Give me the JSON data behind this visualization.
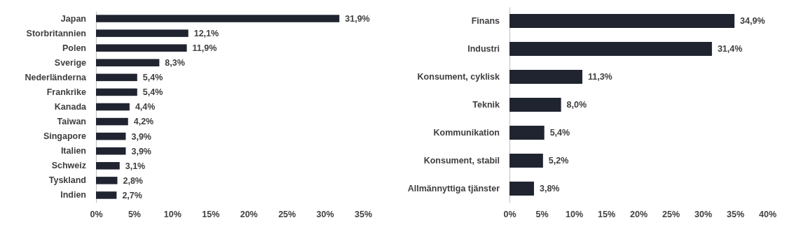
{
  "chart_data": [
    {
      "type": "bar",
      "orientation": "horizontal",
      "categories": [
        "Japan",
        "Storbritannien",
        "Polen",
        "Sverige",
        "Nederländerna",
        "Frankrike",
        "Kanada",
        "Taiwan",
        "Singapore",
        "Italien",
        "Schweiz",
        "Tyskland",
        "Indien"
      ],
      "values": [
        31.9,
        12.1,
        11.9,
        8.3,
        5.4,
        5.4,
        4.4,
        4.2,
        3.9,
        3.9,
        3.1,
        2.8,
        2.7
      ],
      "value_labels": [
        "31,9%",
        "12,1%",
        "11,9%",
        "8,3%",
        "5,4%",
        "5,4%",
        "4,4%",
        "4,2%",
        "3,9%",
        "3,9%",
        "3,1%",
        "2,8%",
        "2,7%"
      ],
      "color": "#1f2430",
      "xlim": [
        0,
        35
      ],
      "xticks": [
        {
          "value": 0,
          "label": "0%"
        },
        {
          "value": 5,
          "label": "5%"
        },
        {
          "value": 10,
          "label": "10%"
        },
        {
          "value": 15,
          "label": "15%"
        },
        {
          "value": 20,
          "label": "20%"
        },
        {
          "value": 25,
          "label": "25%"
        },
        {
          "value": 30,
          "label": "30%"
        },
        {
          "value": 35,
          "label": "35%"
        }
      ],
      "grid": false
    },
    {
      "type": "bar",
      "orientation": "horizontal",
      "categories": [
        "Finans",
        "Industri",
        "Konsument, cyklisk",
        "Teknik",
        "Kommunikation",
        "Konsument, stabil",
        "Allmännyttiga tjänster"
      ],
      "values": [
        34.9,
        31.4,
        11.3,
        8.0,
        5.4,
        5.2,
        3.8
      ],
      "value_labels": [
        "34,9%",
        "31,4%",
        "11,3%",
        "8,0%",
        "5,4%",
        "5,2%",
        "3,8%"
      ],
      "color": "#1f2430",
      "xlim": [
        0,
        40
      ],
      "xticks": [
        {
          "value": 0,
          "label": "0%"
        },
        {
          "value": 5,
          "label": "5%"
        },
        {
          "value": 10,
          "label": "10%"
        },
        {
          "value": 15,
          "label": "15%"
        },
        {
          "value": 20,
          "label": "20%"
        },
        {
          "value": 25,
          "label": "25%"
        },
        {
          "value": 30,
          "label": "30%"
        },
        {
          "value": 35,
          "label": "35%"
        },
        {
          "value": 40,
          "label": "40%"
        }
      ],
      "grid": false
    }
  ]
}
